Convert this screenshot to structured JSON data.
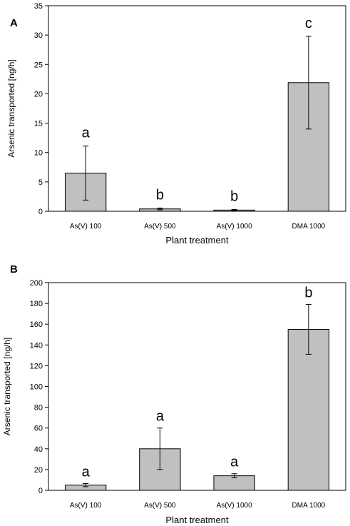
{
  "chart_data": [
    {
      "panel_label": "A",
      "type": "bar",
      "categories": [
        "As(V) 100",
        "As(V) 500",
        "As(V) 1000",
        "DMA 1000"
      ],
      "values": [
        6.5,
        0.4,
        0.2,
        21.9
      ],
      "errors": [
        4.6,
        0.15,
        0.1,
        7.9
      ],
      "significance": [
        "a",
        "b",
        "b",
        "c"
      ],
      "xlabel": "Plant treatment",
      "ylabel": "Arsenic transported [ng/h]",
      "ylim": [
        0,
        35
      ],
      "yticks": [
        0,
        5,
        10,
        15,
        20,
        25,
        30,
        35
      ],
      "bar_color": "#c0c0c0",
      "grid": false
    },
    {
      "panel_label": "B",
      "type": "bar",
      "categories": [
        "As(V) 100",
        "As(V) 500",
        "As(V) 1000",
        "DMA 1000"
      ],
      "values": [
        5,
        40,
        14,
        155
      ],
      "errors": [
        1.5,
        20,
        2,
        24
      ],
      "significance": [
        "a",
        "a",
        "a",
        "b"
      ],
      "xlabel": "Plant treatment",
      "ylabel": "Arsenic transported [ng/h]",
      "ylim": [
        0,
        200
      ],
      "yticks": [
        0,
        20,
        40,
        60,
        80,
        100,
        120,
        140,
        160,
        180,
        200
      ],
      "bar_color": "#c0c0c0",
      "grid": false
    }
  ]
}
